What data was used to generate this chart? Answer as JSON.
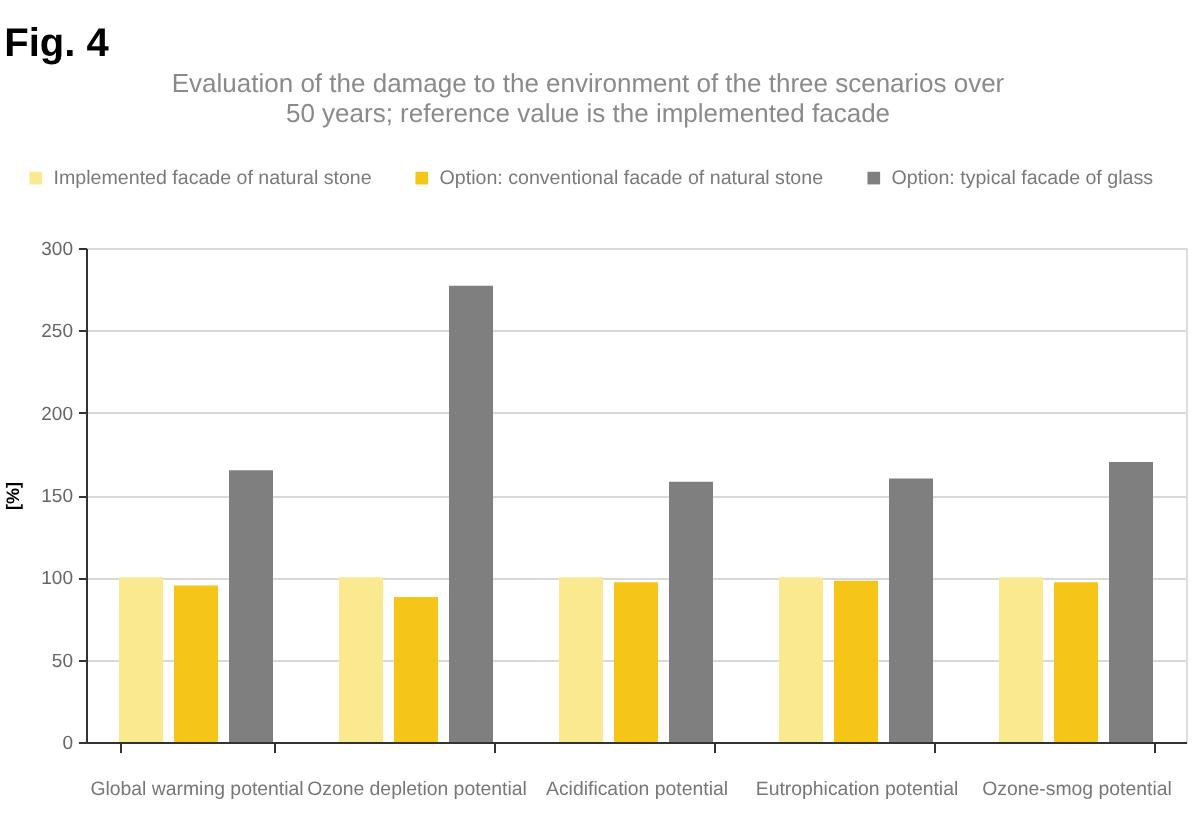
{
  "chart_data": {
    "type": "bar",
    "title": "Fig. 4",
    "subtitle": "Evaluation of the damage to the environment of the three scenarios over 50 years; reference value is the implemented facade",
    "ylabel": "[%]",
    "categories": [
      "Global warming potential",
      "Ozone depletion potential",
      "Acidification potential",
      "Eutrophication potential",
      "Ozone-smog potential"
    ],
    "series": [
      {
        "name": "Implemented facade of natural stone",
        "color": "#fae98f",
        "values": [
          100,
          100,
          100,
          100,
          100
        ]
      },
      {
        "name": "Option: conventional facade of natural stone",
        "color": "#f5c518",
        "values": [
          95,
          88,
          97,
          98,
          97
        ]
      },
      {
        "name": "Option: typical facade of glass",
        "color": "#7f7f7f",
        "values": [
          165,
          277,
          158,
          160,
          170
        ]
      }
    ],
    "ylim": [
      0,
      300
    ],
    "yticks": [
      0,
      50,
      100,
      150,
      200,
      250,
      300
    ],
    "grid": "y",
    "legend": "top"
  }
}
